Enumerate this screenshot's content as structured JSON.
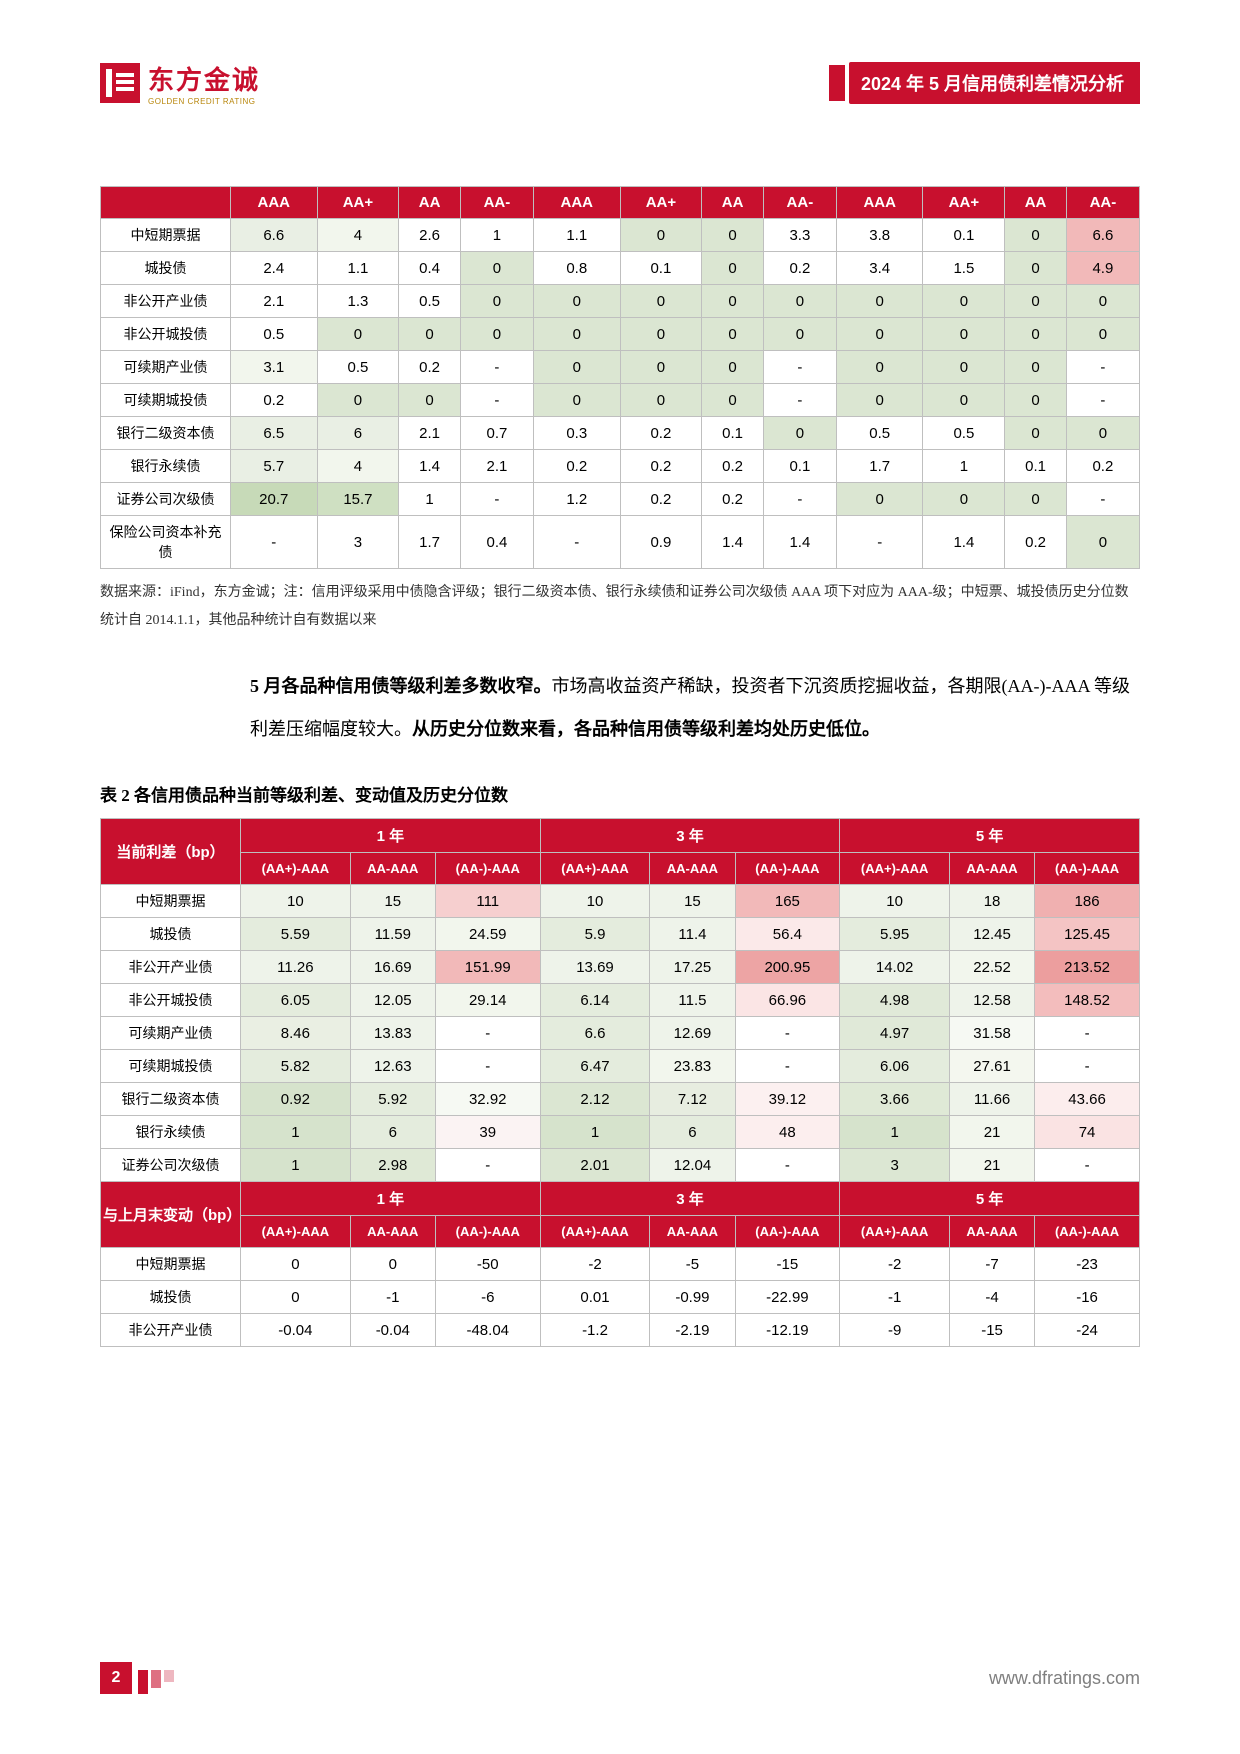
{
  "header": {
    "logo_cn": "东方金诚",
    "logo_en": "GOLDEN CREDIT RATING",
    "doc_title": "2024 年 5 月信用债利差情况分析"
  },
  "table1": {
    "col_headers": [
      "AAA",
      "AA+",
      "AA",
      "AA-",
      "AAA",
      "AA+",
      "AA",
      "AA-",
      "AAA",
      "AA+",
      "AA",
      "AA-"
    ],
    "row_labels": [
      "中短期票据",
      "城投债",
      "非公开产业债",
      "非公开城投债",
      "可续期产业债",
      "可续期城投债",
      "银行二级资本债",
      "银行永续债",
      "证券公司次级债",
      "保险公司资本补充债"
    ],
    "rows": [
      [
        "6.6",
        "4",
        "2.6",
        "1",
        "1.1",
        "0",
        "0",
        "3.3",
        "3.8",
        "0.1",
        "0",
        "6.6"
      ],
      [
        "2.4",
        "1.1",
        "0.4",
        "0",
        "0.8",
        "0.1",
        "0",
        "0.2",
        "3.4",
        "1.5",
        "0",
        "4.9"
      ],
      [
        "2.1",
        "1.3",
        "0.5",
        "0",
        "0",
        "0",
        "0",
        "0",
        "0",
        "0",
        "0",
        "0"
      ],
      [
        "0.5",
        "0",
        "0",
        "0",
        "0",
        "0",
        "0",
        "0",
        "0",
        "0",
        "0",
        "0"
      ],
      [
        "3.1",
        "0.5",
        "0.2",
        "-",
        "0",
        "0",
        "0",
        "-",
        "0",
        "0",
        "0",
        "-"
      ],
      [
        "0.2",
        "0",
        "0",
        "-",
        "0",
        "0",
        "0",
        "-",
        "0",
        "0",
        "0",
        "-"
      ],
      [
        "6.5",
        "6",
        "2.1",
        "0.7",
        "0.3",
        "0.2",
        "0.1",
        "0",
        "0.5",
        "0.5",
        "0",
        "0"
      ],
      [
        "5.7",
        "4",
        "1.4",
        "2.1",
        "0.2",
        "0.2",
        "0.2",
        "0.1",
        "1.7",
        "1",
        "0.1",
        "0.2"
      ],
      [
        "20.7",
        "15.7",
        "1",
        "-",
        "1.2",
        "0.2",
        "0.2",
        "-",
        "0",
        "0",
        "0",
        "-"
      ],
      [
        "-",
        "3",
        "1.7",
        "0.4",
        "-",
        "0.9",
        "1.4",
        "1.4",
        "-",
        "1.4",
        "0.2",
        "0"
      ]
    ],
    "cell_colors": [
      [
        "#e9efe4",
        "#f2f6ed",
        "#ffffff",
        "#ffffff",
        "#ffffff",
        "#dbe6d2",
        "#dbe6d2",
        "#ffffff",
        "#ffffff",
        "#ffffff",
        "#dbe6d2",
        "#f2b9b9"
      ],
      [
        "#ffffff",
        "#ffffff",
        "#ffffff",
        "#dbe6d2",
        "#ffffff",
        "#ffffff",
        "#dbe6d2",
        "#ffffff",
        "#ffffff",
        "#ffffff",
        "#dbe6d2",
        "#f2b9b9"
      ],
      [
        "#ffffff",
        "#ffffff",
        "#ffffff",
        "#dbe6d2",
        "#dbe6d2",
        "#dbe6d2",
        "#dbe6d2",
        "#dbe6d2",
        "#dbe6d2",
        "#dbe6d2",
        "#dbe6d2",
        "#dbe6d2"
      ],
      [
        "#ffffff",
        "#dbe6d2",
        "#dbe6d2",
        "#dbe6d2",
        "#dbe6d2",
        "#dbe6d2",
        "#dbe6d2",
        "#dbe6d2",
        "#dbe6d2",
        "#dbe6d2",
        "#dbe6d2",
        "#dbe6d2"
      ],
      [
        "#f2f6ed",
        "#ffffff",
        "#ffffff",
        "#ffffff",
        "#dbe6d2",
        "#dbe6d2",
        "#dbe6d2",
        "#ffffff",
        "#dbe6d2",
        "#dbe6d2",
        "#dbe6d2",
        "#ffffff"
      ],
      [
        "#ffffff",
        "#dbe6d2",
        "#dbe6d2",
        "#ffffff",
        "#dbe6d2",
        "#dbe6d2",
        "#dbe6d2",
        "#ffffff",
        "#dbe6d2",
        "#dbe6d2",
        "#dbe6d2",
        "#ffffff"
      ],
      [
        "#e9efe4",
        "#e9efe4",
        "#ffffff",
        "#ffffff",
        "#ffffff",
        "#ffffff",
        "#ffffff",
        "#dbe6d2",
        "#ffffff",
        "#ffffff",
        "#dbe6d2",
        "#dbe6d2"
      ],
      [
        "#e9efe4",
        "#f2f6ed",
        "#ffffff",
        "#ffffff",
        "#ffffff",
        "#ffffff",
        "#ffffff",
        "#ffffff",
        "#ffffff",
        "#ffffff",
        "#ffffff",
        "#ffffff"
      ],
      [
        "#c7dab8",
        "#cfe0c2",
        "#ffffff",
        "#ffffff",
        "#ffffff",
        "#ffffff",
        "#ffffff",
        "#ffffff",
        "#dbe6d2",
        "#dbe6d2",
        "#dbe6d2",
        "#ffffff"
      ],
      [
        "#ffffff",
        "#ffffff",
        "#ffffff",
        "#ffffff",
        "#ffffff",
        "#ffffff",
        "#ffffff",
        "#ffffff",
        "#ffffff",
        "#ffffff",
        "#ffffff",
        "#dbe6d2"
      ]
    ]
  },
  "source_note": "数据来源：iFind，东方金诚；注：信用评级采用中债隐含评级；银行二级资本债、银行永续债和证券公司次级债 AAA 项下对应为 AAA-级；中短票、城投债历史分位数统计自 2014.1.1，其他品种统计自有数据以来",
  "body_text": {
    "b1": "5 月各品种信用债等级利差多数收窄。",
    "p1": "市场高收益资产稀缺，投资者下沉资质挖掘收益，各期限(AA-)-AAA 等级利差压缩幅度较大。",
    "b2": "从历史分位数来看，各品种信用债等级利差均处历史低位。"
  },
  "table2_title": "表 2  各信用债品种当前等级利差、变动值及历史分位数",
  "table2": {
    "section1_label": "当前利差（bp）",
    "section2_label": "与上月末变动（bp）",
    "year_headers": [
      "1 年",
      "3 年",
      "5 年"
    ],
    "sub_headers": [
      "(AA+)-AAA",
      "AA-AAA",
      "(AA-)-AAA",
      "(AA+)-AAA",
      "AA-AAA",
      "(AA-)-AAA",
      "(AA+)-AAA",
      "AA-AAA",
      "(AA-)-AAA"
    ],
    "row_labels1": [
      "中短期票据",
      "城投债",
      "非公开产业债",
      "非公开城投债",
      "可续期产业债",
      "可续期城投债",
      "银行二级资本债",
      "银行永续债",
      "证券公司次级债"
    ],
    "rows1": [
      [
        "10",
        "15",
        "111",
        "10",
        "15",
        "165",
        "10",
        "18",
        "186"
      ],
      [
        "5.59",
        "11.59",
        "24.59",
        "5.9",
        "11.4",
        "56.4",
        "5.95",
        "12.45",
        "125.45"
      ],
      [
        "11.26",
        "16.69",
        "151.99",
        "13.69",
        "17.25",
        "200.95",
        "14.02",
        "22.52",
        "213.52"
      ],
      [
        "6.05",
        "12.05",
        "29.14",
        "6.14",
        "11.5",
        "66.96",
        "4.98",
        "12.58",
        "148.52"
      ],
      [
        "8.46",
        "13.83",
        "-",
        "6.6",
        "12.69",
        "-",
        "4.97",
        "31.58",
        "-"
      ],
      [
        "5.82",
        "12.63",
        "-",
        "6.47",
        "23.83",
        "-",
        "6.06",
        "27.61",
        "-"
      ],
      [
        "0.92",
        "5.92",
        "32.92",
        "2.12",
        "7.12",
        "39.12",
        "3.66",
        "11.66",
        "43.66"
      ],
      [
        "1",
        "6",
        "39",
        "1",
        "6",
        "48",
        "1",
        "21",
        "74"
      ],
      [
        "1",
        "2.98",
        "-",
        "2.01",
        "12.04",
        "-",
        "3",
        "21",
        "-"
      ]
    ],
    "cell_colors1": [
      [
        "#eef3ea",
        "#eef3ea",
        "#f6cfcf",
        "#eef3ea",
        "#eef3ea",
        "#f2b9b9",
        "#eef3ea",
        "#eef3ea",
        "#f0b0b0"
      ],
      [
        "#e4ecdd",
        "#eef3ea",
        "#f2f6ed",
        "#e4ecdd",
        "#eef3ea",
        "#fbe9e9",
        "#e4ecdd",
        "#eef3ea",
        "#f4c4c4"
      ],
      [
        "#eef3ea",
        "#eef3ea",
        "#f2b9b9",
        "#eef3ea",
        "#eef3ea",
        "#eda4a4",
        "#eef3ea",
        "#f2f6ed",
        "#ec9e9e"
      ],
      [
        "#e4ecdd",
        "#eef3ea",
        "#f2f6ed",
        "#e4ecdd",
        "#eef3ea",
        "#fbe5e5",
        "#e0e9d8",
        "#eef3ea",
        "#f3bdbd"
      ],
      [
        "#eaefe3",
        "#eef3ea",
        "#ffffff",
        "#e4ecdd",
        "#eef3ea",
        "#ffffff",
        "#e0e9d8",
        "#f6f9f3",
        "#ffffff"
      ],
      [
        "#e4ecdd",
        "#eef3ea",
        "#ffffff",
        "#e4ecdd",
        "#f2f6ed",
        "#ffffff",
        "#e4ecdd",
        "#f4f7ef",
        "#ffffff"
      ],
      [
        "#d6e3cc",
        "#e4ecdd",
        "#f6f9f3",
        "#dbe6d2",
        "#e7ede0",
        "#fcf0f0",
        "#dfe9d6",
        "#eef3ea",
        "#fceded"
      ],
      [
        "#d6e3cc",
        "#e4ecdd",
        "#fbf3f3",
        "#d6e3cc",
        "#e4ecdd",
        "#fceeee",
        "#d6e3cc",
        "#f2f6ed",
        "#fae3e3"
      ],
      [
        "#d6e3cc",
        "#dfe9d6",
        "#ffffff",
        "#dbe6d2",
        "#eef3ea",
        "#ffffff",
        "#dce7d3",
        "#f2f6ed",
        "#ffffff"
      ]
    ],
    "row_labels2": [
      "中短期票据",
      "城投债",
      "非公开产业债"
    ],
    "rows2": [
      [
        "0",
        "0",
        "-50",
        "-2",
        "-5",
        "-15",
        "-2",
        "-7",
        "-23"
      ],
      [
        "0",
        "-1",
        "-6",
        "0.01",
        "-0.99",
        "-22.99",
        "-1",
        "-4",
        "-16"
      ],
      [
        "-0.04",
        "-0.04",
        "-48.04",
        "-1.2",
        "-2.19",
        "-12.19",
        "-9",
        "-15",
        "-24"
      ]
    ]
  },
  "footer": {
    "page_num": "2",
    "url": "www.dfratings.com"
  }
}
